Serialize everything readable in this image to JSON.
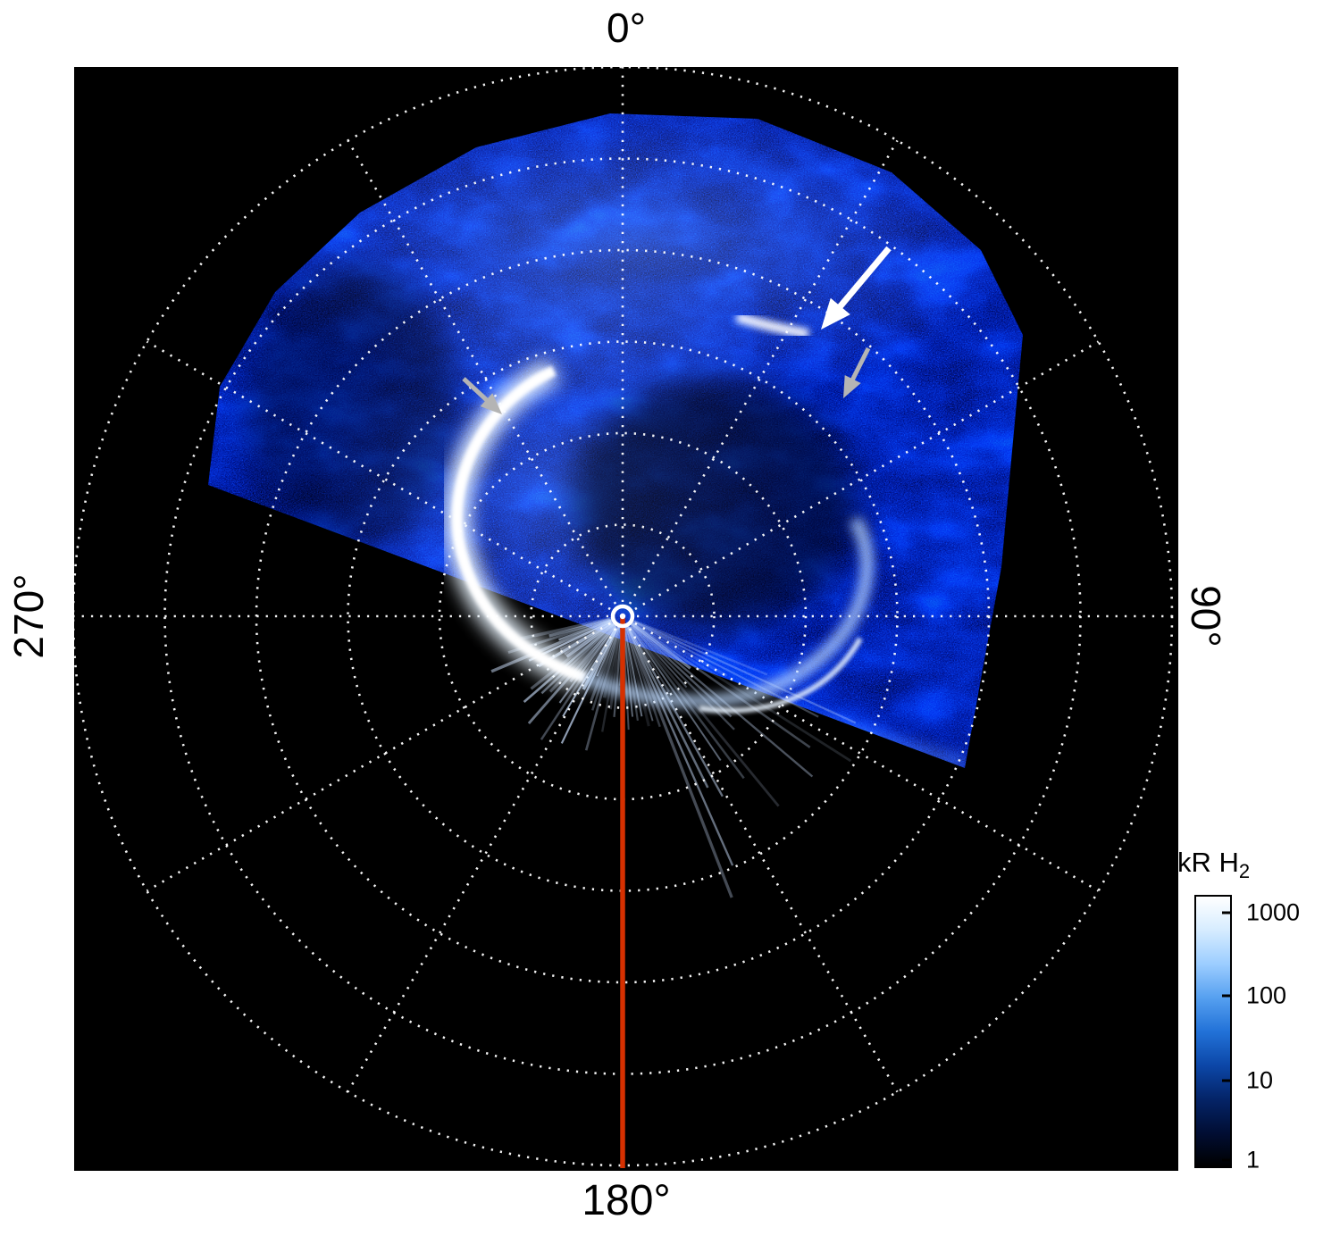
{
  "figure": {
    "background": "#ffffff",
    "panel_background": "#000000",
    "angle_labels": {
      "top": "0°",
      "right": "90°",
      "bottom": "180°",
      "left": "270°"
    }
  },
  "colorbar": {
    "label_main": "kR H",
    "label_sub": "2",
    "ticks": [
      "1000",
      "100",
      "10",
      "1"
    ],
    "gradient": [
      "#ffffff",
      "#d6ecff",
      "#9ccdff",
      "#56a0f0",
      "#2272d8",
      "#0c47a8",
      "#042468",
      "#010e34",
      "#000000"
    ]
  },
  "chart_data": {
    "type": "heatmap",
    "projection": "polar",
    "title": "",
    "quantity": "H2 auroral emission brightness",
    "units": "kR",
    "angular_tick_labels": [
      "0°",
      "90°",
      "180°",
      "270°"
    ],
    "angular_gridline_step_deg": 30,
    "radial_gridline_count": 6,
    "grid_color": "#ffffff",
    "grid_style": "dotted",
    "meridian_line": {
      "angle_deg": 180,
      "color": "#d63000"
    },
    "pole_marker": {
      "shape": "circle",
      "color": "#ffffff"
    },
    "color_scale": {
      "type": "log",
      "min": 1,
      "max": 1000,
      "ticks": [
        1000,
        100,
        10,
        1
      ],
      "label": "kR H2",
      "colors": [
        "#000000",
        "#042468",
        "#2272d8",
        "#9ccdff",
        "#ffffff"
      ]
    },
    "coverage": "imaging data fills roughly the 270°-0°-90° half of the polar projection; lower half of the dial has no data",
    "features": [
      {
        "name": "main-auroral-arc",
        "description": "bright white arc of the main auroral oval, left of the pole",
        "approx_brightness_kR": 1000
      },
      {
        "name": "secondary-arc",
        "description": "fainter arc closing the oval on the right side of the pole",
        "approx_brightness_kR": 200
      },
      {
        "name": "bright-spot",
        "description": "isolated bright emission patch equatorward of the oval, upper right",
        "approx_brightness_kR": 600
      }
    ],
    "annotations": [
      {
        "shape": "arrow",
        "color": "#ffffff",
        "points_to": "bright-spot"
      },
      {
        "shape": "arrow",
        "color": "#b4b4b4",
        "points_to": "secondary-emission"
      },
      {
        "shape": "arrow",
        "color": "#b4b4b4",
        "points_to": "main-auroral-arc"
      }
    ]
  }
}
